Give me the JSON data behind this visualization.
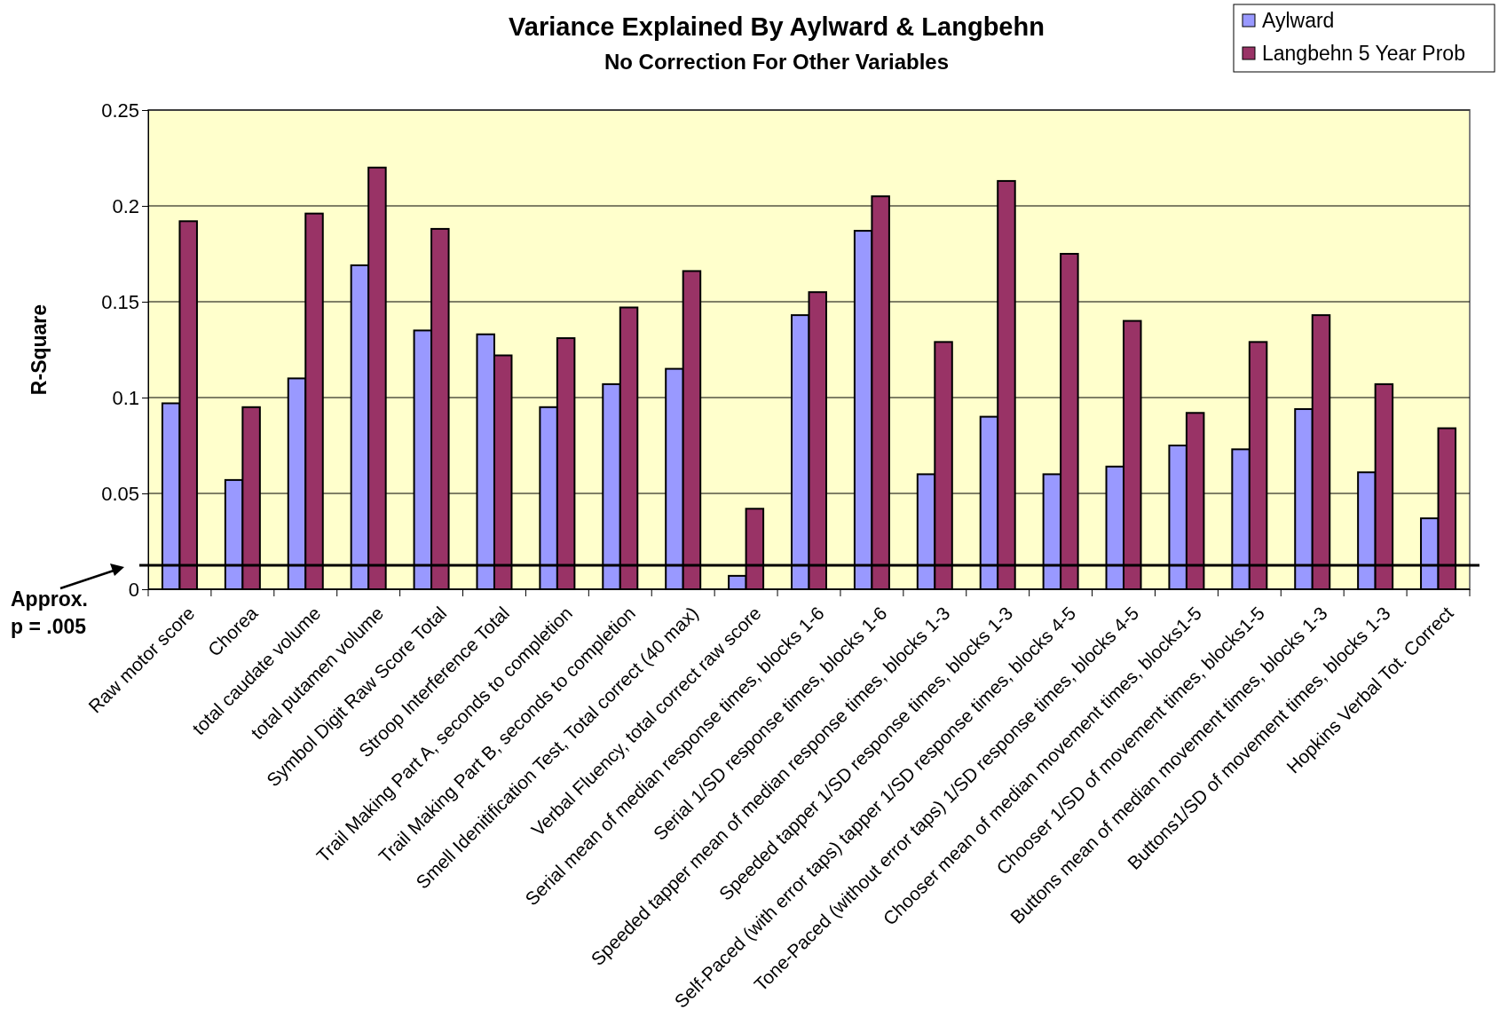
{
  "chart_data": {
    "type": "bar",
    "title": "Variance Explained By Aylward & Langbehn",
    "subtitle": "No Correction For Other Variables",
    "ylabel": "R-Square",
    "categories": [
      "Raw motor score",
      "Chorea",
      "total caudate volume",
      "total putamen volume",
      "Symbol Digit Raw Score Total",
      "Stroop Interference Total",
      "Trail Making Part A, seconds to completion",
      "Trail Making Part B, seconds to completion",
      "Smell Idenitification Test, Total correct (40 max)",
      "Verbal Fluency, total correct raw score",
      "Serial mean of median response times, blocks 1-6",
      "Serial   1/SD response times, blocks 1-6",
      "Speeded tapper mean of median response times, blocks 1-3",
      "Speeded tapper 1/SD response times, blocks 1-3",
      "Self-Paced (with error taps) tapper 1/SD response times, blocks 4-5",
      "Tone-Paced (without error taps) 1/SD response times, blocks 4-5",
      "Chooser mean of median movement times, blocks1-5",
      "Chooser 1/SD of movement times, blocks1-5",
      "Buttons mean of median movement times, blocks 1-3",
      "Buttons1/SD of movement times, blocks 1-3",
      "Hopkins Verbal Tot. Correct"
    ],
    "series": [
      {
        "name": "Aylward",
        "color": "#9999ff",
        "values": [
          0.097,
          0.057,
          0.11,
          0.169,
          0.135,
          0.133,
          0.095,
          0.107,
          0.115,
          0.007,
          0.143,
          0.187,
          0.06,
          0.09,
          0.06,
          0.064,
          0.075,
          0.073,
          0.094,
          0.061,
          0.037
        ]
      },
      {
        "name": "Langbehn 5 Year Prob",
        "color": "#993366",
        "values": [
          0.192,
          0.095,
          0.196,
          0.22,
          0.188,
          0.122,
          0.131,
          0.147,
          0.166,
          0.042,
          0.155,
          0.205,
          0.129,
          0.213,
          0.175,
          0.14,
          0.092,
          0.129,
          0.143,
          0.107,
          0.084
        ]
      }
    ],
    "ylim": [
      0,
      0.25
    ],
    "yticks": [
      0,
      0.05,
      0.1,
      0.15,
      0.2,
      0.25
    ],
    "grid": "y",
    "legend": "top right",
    "ref_lines": [
      {
        "axis": "y",
        "value": 0.0125,
        "label": "Approx. p = .005",
        "color": "#000000"
      }
    ]
  }
}
